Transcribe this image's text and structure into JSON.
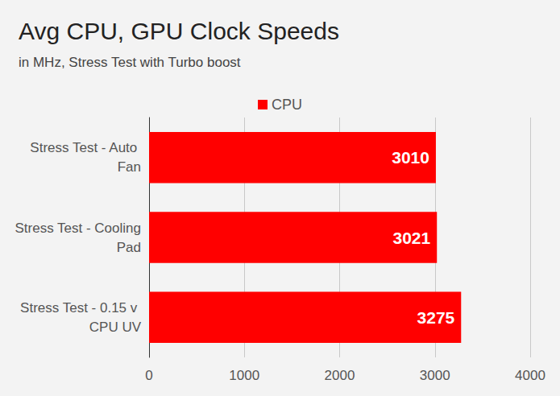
{
  "chart_data": {
    "type": "bar",
    "orientation": "horizontal",
    "title": "Avg CPU, GPU Clock Speeds",
    "subtitle": "in MHz, Stress Test with Turbo boost",
    "categories": [
      "Stress Test - Auto Fan",
      "Stress Test - Cooling Pad",
      "Stress Test - 0.15 v CPU UV"
    ],
    "series": [
      {
        "name": "CPU",
        "color": "#ff0000",
        "values": [
          3010,
          3021,
          3275
        ]
      }
    ],
    "xlim": [
      0,
      4000
    ],
    "xticks": [
      0,
      1000,
      2000,
      3000,
      4000
    ],
    "grid": true,
    "legend": "top",
    "data_labels": true
  }
}
